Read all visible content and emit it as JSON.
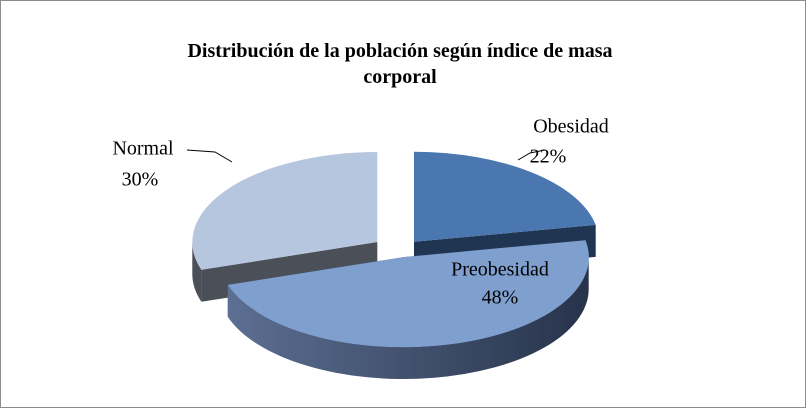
{
  "chart_data": {
    "type": "pie3d",
    "title": "Distribución de la población según índice de masa corporal",
    "categories": [
      "Obesidad",
      "Preobesidad",
      "Normal"
    ],
    "values": [
      22,
      48,
      30
    ],
    "value_labels": [
      "22%",
      "48%",
      "30%"
    ],
    "colors": [
      "#4a77b0",
      "#7f9fcf",
      "#b7c6df"
    ]
  }
}
